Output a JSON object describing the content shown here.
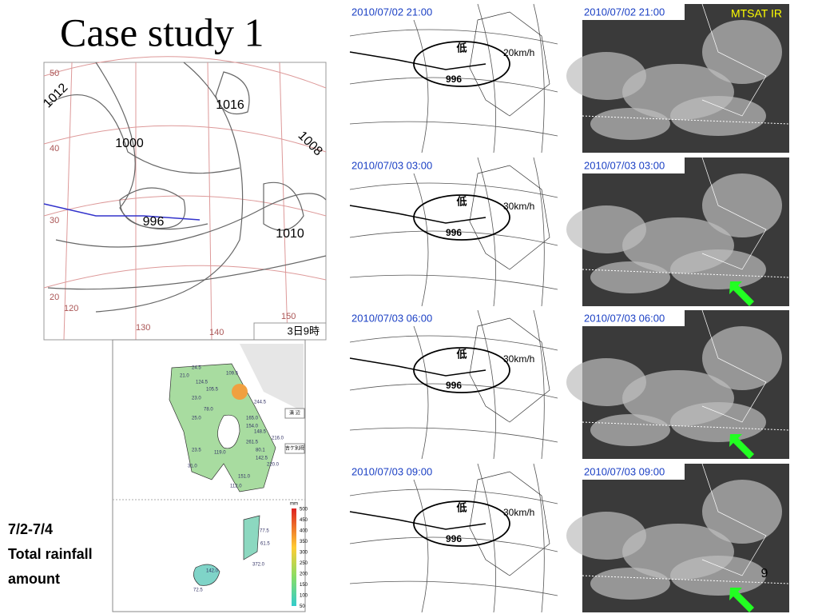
{
  "title": "Case study 1",
  "weather_map": {
    "pressure_labels": [
      "1012",
      "1000",
      "1016",
      "1008",
      "996",
      "1010"
    ],
    "lat_labels": [
      "50",
      "40",
      "30",
      "20",
      "120",
      "130",
      "140",
      "150"
    ],
    "time_label": "3日9時"
  },
  "rainfall_map": {
    "values": [
      "24.5",
      "21.0",
      "124.5",
      "109.5",
      "105.5",
      "23.0",
      "244.5",
      "78.0",
      "25.0",
      "165.0",
      "154.0",
      "148.5",
      "216.0",
      "261.5",
      "80.1",
      "142.5",
      "220.0",
      "119.0",
      "23.5",
      "151.0",
      "31.0",
      "112.0",
      "77.5",
      "61.5",
      "372.0",
      "142.0",
      "72.5"
    ],
    "stations": [
      "清 辺",
      "吉ケ別府"
    ],
    "unit": "mm",
    "legend": [
      "500",
      "450",
      "400",
      "350",
      "300",
      "250",
      "200",
      "150",
      "100",
      "50"
    ]
  },
  "caption": [
    "7/2-7/4",
    "Total rainfall",
    "amount"
  ],
  "surface_charts": [
    {
      "time": "2010/07/02 21:00",
      "speed": "20km/h",
      "pressure": "996",
      "low": "低"
    },
    {
      "time": "2010/07/03 03:00",
      "speed": "30km/h",
      "pressure": "996",
      "low": "低"
    },
    {
      "time": "2010/07/03 06:00",
      "speed": "30km/h",
      "pressure": "996",
      "low": "低"
    },
    {
      "time": "2010/07/03 09:00",
      "speed": "30km/h",
      "pressure": "996",
      "low": "低"
    }
  ],
  "satellite": {
    "label": "MTSAT IR",
    "times": [
      "2010/07/02 21:00",
      "2010/07/03 03:00",
      "2010/07/03 06:00",
      "2010/07/03 09:00"
    ]
  },
  "page_number": "9"
}
